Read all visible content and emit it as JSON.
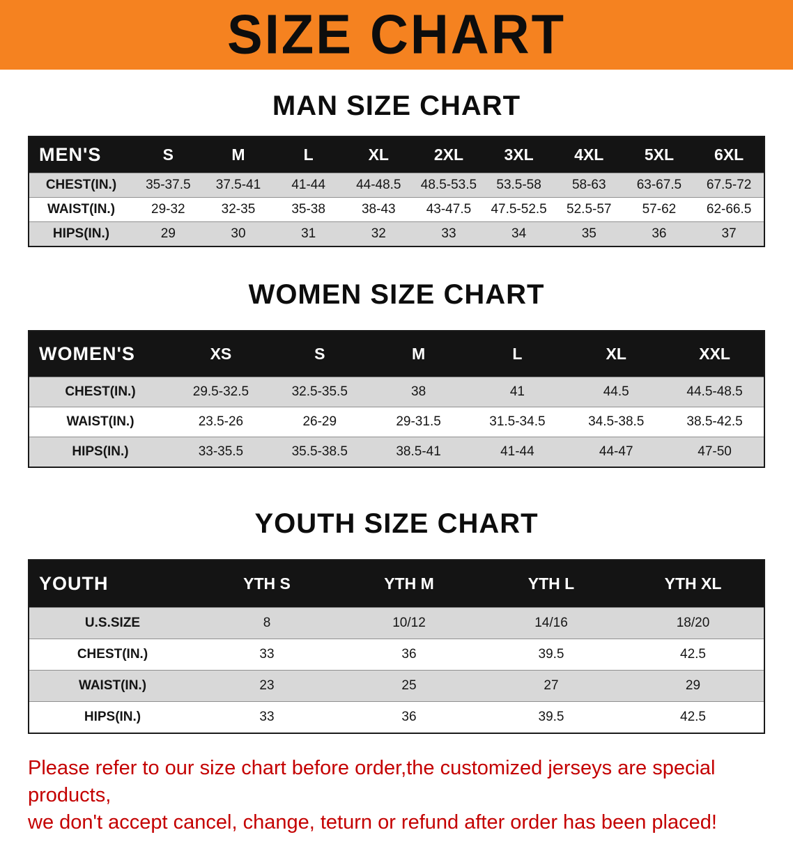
{
  "banner_title": "SIZE CHART",
  "man": {
    "heading": "MAN SIZE CHART",
    "table": {
      "header": [
        "MEN'S",
        "S",
        "M",
        "L",
        "XL",
        "2XL",
        "3XL",
        "4XL",
        "5XL",
        "6XL"
      ],
      "rows": [
        [
          "CHEST(IN.)",
          "35-37.5",
          "37.5-41",
          "41-44",
          "44-48.5",
          "48.5-53.5",
          "53.5-58",
          "58-63",
          "63-67.5",
          "67.5-72"
        ],
        [
          "WAIST(IN.)",
          "29-32",
          "32-35",
          "35-38",
          "38-43",
          "43-47.5",
          "47.5-52.5",
          "52.5-57",
          "57-62",
          "62-66.5"
        ],
        [
          "HIPS(IN.)",
          "29",
          "30",
          "31",
          "32",
          "33",
          "34",
          "35",
          "36",
          "37"
        ]
      ]
    }
  },
  "women": {
    "heading": "WOMEN SIZE CHART",
    "table": {
      "header": [
        "WOMEN'S",
        "XS",
        "S",
        "M",
        "L",
        "XL",
        "XXL"
      ],
      "rows": [
        [
          "CHEST(IN.)",
          "29.5-32.5",
          "32.5-35.5",
          "38",
          "41",
          "44.5",
          "44.5-48.5"
        ],
        [
          "WAIST(IN.)",
          "23.5-26",
          "26-29",
          "29-31.5",
          "31.5-34.5",
          "34.5-38.5",
          "38.5-42.5"
        ],
        [
          "HIPS(IN.)",
          "33-35.5",
          "35.5-38.5",
          "38.5-41",
          "41-44",
          "44-47",
          "47-50"
        ]
      ]
    }
  },
  "youth": {
    "heading": "YOUTH SIZE CHART",
    "table": {
      "header": [
        "YOUTH",
        "YTH S",
        "YTH M",
        "YTH L",
        "YTH XL"
      ],
      "rows": [
        [
          "U.S.SIZE",
          "8",
          "10/12",
          "14/16",
          "18/20"
        ],
        [
          "CHEST(IN.)",
          "33",
          "36",
          "39.5",
          "42.5"
        ],
        [
          "WAIST(IN.)",
          "23",
          "25",
          "27",
          "29"
        ],
        [
          "HIPS(IN.)",
          "33",
          "36",
          "39.5",
          "42.5"
        ]
      ]
    }
  },
  "note": {
    "line1": "Please refer to our size chart before order,the customized jerseys are special products,",
    "line2": "we don't accept cancel, change, teturn or refund after order has been placed!"
  },
  "colors": {
    "banner_orange": "#F58220",
    "header_black": "#141414",
    "row_gray": "#D8D8D8",
    "note_red": "#C40000"
  }
}
